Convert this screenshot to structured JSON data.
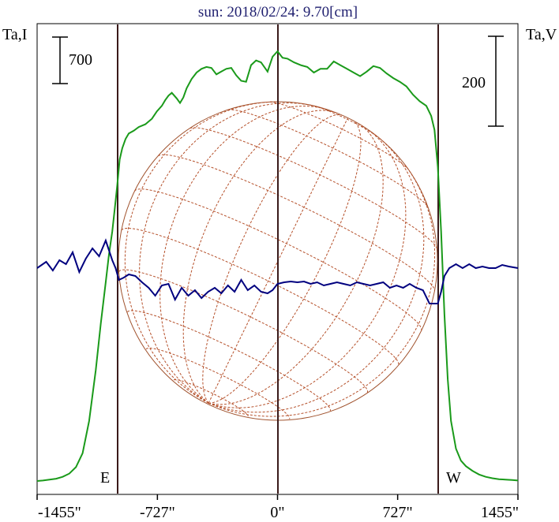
{
  "chart_data": {
    "type": "line",
    "title": "sun: 2018/02/24: 9.70[cm]",
    "left_axis_label": "Ta,I",
    "right_axis_label": "Ta,V",
    "scale_bar_left_label": "700",
    "scale_bar_right_label": "200",
    "east_label": "E",
    "west_label": "W",
    "x_ticks": [
      {
        "value": -1455,
        "label": "-1455\""
      },
      {
        "value": -727,
        "label": "-727\""
      },
      {
        "value": 0,
        "label": "0\""
      },
      {
        "value": 727,
        "label": "727\""
      },
      {
        "value": 1455,
        "label": "1455\""
      }
    ],
    "xlim": [
      -1455,
      1455
    ],
    "limb_markers_arcsec": [
      -970,
      0,
      970
    ],
    "series": [
      {
        "color": "#1a9a1a",
        "x": [
          -1455,
          -1420,
          -1380,
          -1340,
          -1300,
          -1260,
          -1220,
          -1180,
          -1140,
          -1100,
          -1070,
          -1040,
          -1020,
          -1000,
          -985,
          -970,
          -955,
          -940,
          -920,
          -900,
          -870,
          -840,
          -800,
          -760,
          -730,
          -700,
          -680,
          -660,
          -640,
          -610,
          -590,
          -570,
          -550,
          -520,
          -490,
          -460,
          -430,
          -400,
          -370,
          -340,
          -310,
          -280,
          -250,
          -220,
          -190,
          -160,
          -130,
          -100,
          -60,
          -30,
          0,
          30,
          60,
          100,
          140,
          180,
          220,
          260,
          300,
          340,
          380,
          420,
          460,
          500,
          540,
          580,
          620,
          660,
          700,
          740,
          780,
          820,
          860,
          900,
          930,
          950,
          970,
          990,
          1010,
          1030,
          1050,
          1080,
          1110,
          1140,
          1180,
          1220,
          1260,
          1300,
          1340,
          1380,
          1420,
          1455
        ],
        "y": [
          0,
          5,
          15,
          25,
          45,
          80,
          150,
          300,
          650,
          1200,
          1700,
          2150,
          2450,
          2700,
          2950,
          3200,
          3480,
          3600,
          3700,
          3760,
          3790,
          3830,
          3860,
          3920,
          4000,
          4060,
          4120,
          4170,
          4200,
          4140,
          4090,
          4150,
          4250,
          4350,
          4420,
          4460,
          4480,
          4470,
          4400,
          4430,
          4460,
          4470,
          4390,
          4330,
          4320,
          4500,
          4550,
          4530,
          4430,
          4590,
          4650,
          4580,
          4570,
          4530,
          4500,
          4480,
          4420,
          4460,
          4460,
          4540,
          4500,
          4460,
          4420,
          4380,
          4430,
          4490,
          4470,
          4410,
          4360,
          4320,
          4270,
          4180,
          4110,
          4060,
          3950,
          3800,
          3400,
          2700,
          1800,
          1100,
          650,
          350,
          220,
          160,
          110,
          70,
          45,
          30,
          20,
          15,
          10,
          5
        ]
      },
      {
        "color": "#00007f",
        "x": [
          -1455,
          -1400,
          -1360,
          -1320,
          -1280,
          -1240,
          -1200,
          -1160,
          -1120,
          -1080,
          -1040,
          -1000,
          -980,
          -960,
          -930,
          -900,
          -860,
          -820,
          -780,
          -740,
          -700,
          -660,
          -620,
          -580,
          -540,
          -500,
          -460,
          -420,
          -380,
          -340,
          -300,
          -260,
          -220,
          -180,
          -140,
          -100,
          -60,
          -30,
          0,
          40,
          80,
          120,
          160,
          200,
          240,
          280,
          320,
          360,
          400,
          440,
          480,
          520,
          560,
          600,
          640,
          680,
          720,
          760,
          800,
          840,
          880,
          920,
          950,
          970,
          990,
          1010,
          1040,
          1080,
          1120,
          1160,
          1200,
          1240,
          1280,
          1320,
          1360,
          1400,
          1455
        ],
        "y": [
          0,
          8,
          -3,
          10,
          5,
          20,
          -5,
          12,
          25,
          15,
          35,
          10,
          0,
          -15,
          -12,
          -8,
          -10,
          -18,
          -25,
          -35,
          -22,
          -20,
          -40,
          -25,
          -35,
          -28,
          -38,
          -30,
          -25,
          -32,
          -22,
          -30,
          -15,
          -28,
          -22,
          -30,
          -32,
          -28,
          -20,
          -18,
          -17,
          -18,
          -17,
          -20,
          -18,
          -22,
          -20,
          -18,
          -20,
          -22,
          -18,
          -20,
          -22,
          -20,
          -18,
          -25,
          -22,
          -25,
          -20,
          -25,
          -28,
          -45,
          -45,
          -45,
          -30,
          -10,
          0,
          5,
          0,
          5,
          0,
          2,
          0,
          0,
          4,
          2,
          0
        ]
      }
    ]
  }
}
